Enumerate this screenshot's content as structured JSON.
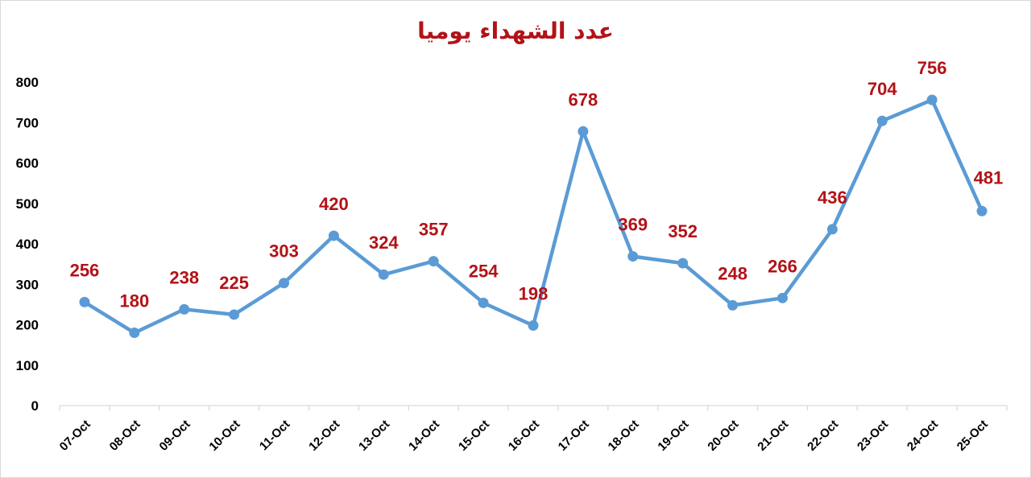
{
  "chart_data": {
    "type": "line",
    "title": "عدد الشهداء يوميا",
    "xlabel": "",
    "ylabel": "",
    "ylim": [
      0,
      800
    ],
    "yticks": [
      "0",
      "100",
      "200",
      "300",
      "400",
      "500",
      "600",
      "700",
      "800"
    ],
    "categories": [
      "07-Oct",
      "08-Oct",
      "09-Oct",
      "10-Oct",
      "11-Oct",
      "12-Oct",
      "13-Oct",
      "14-Oct",
      "15-Oct",
      "16-Oct",
      "17-Oct",
      "18-Oct",
      "19-Oct",
      "20-Oct",
      "21-Oct",
      "22-Oct",
      "23-Oct",
      "24-Oct",
      "25-Oct"
    ],
    "values": [
      256,
      180,
      238,
      225,
      303,
      420,
      324,
      357,
      254,
      198,
      678,
      369,
      352,
      248,
      266,
      436,
      704,
      756,
      481
    ],
    "grid": false,
    "legend": "none",
    "line_color": "#5b9bd5",
    "label_color": "#b31217"
  }
}
